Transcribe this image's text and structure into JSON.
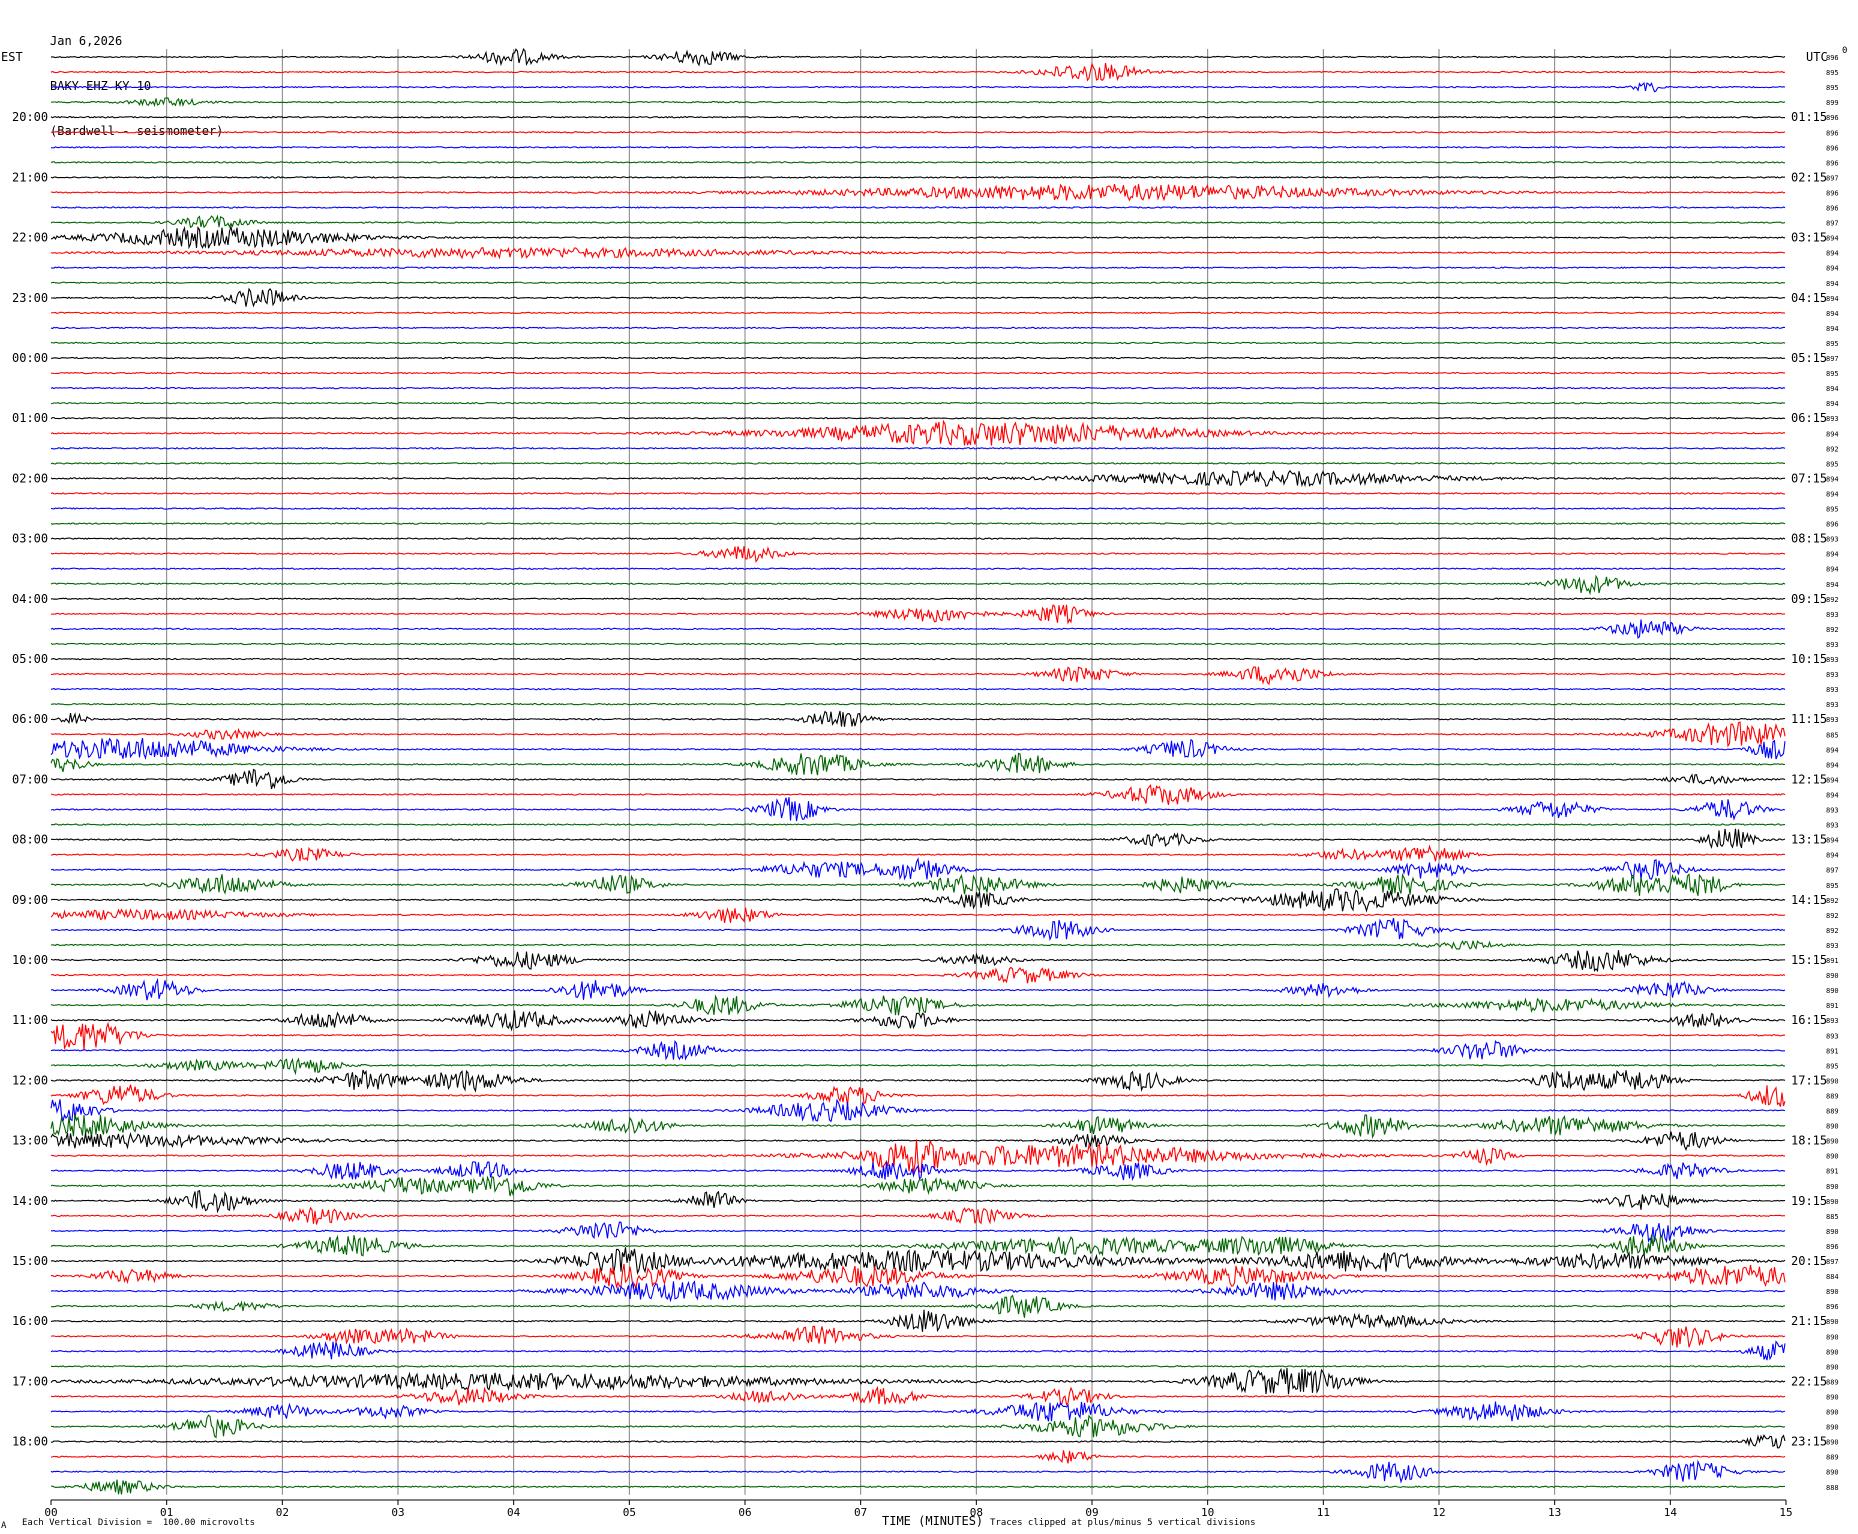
{
  "header": {
    "date": "Jan 6,2026",
    "station": "BAKY EHZ KY 10",
    "location": "(Bardwell - seismometer)"
  },
  "left_tz": "EST",
  "right_tz": "UTC",
  "right_header": "0",
  "footer": {
    "logo": "A",
    "scale": "Each Vertical Division =  100.00 microvolts",
    "xlabel": "TIME (MINUTES)",
    "clip": "Traces clipped at plus/minus 5 vertical divisions"
  },
  "colors": {
    "black": "#000000",
    "red": "#ff0000",
    "blue": "#0000ff",
    "green": "#006400",
    "grid": "#808080"
  },
  "chart_data": {
    "type": "line",
    "subtype": "helicorder",
    "x": {
      "label": "TIME (MINUTES)",
      "range": [
        0,
        15
      ],
      "ticks": [
        "00",
        "01",
        "02",
        "03",
        "04",
        "05",
        "06",
        "07",
        "08",
        "09",
        "10",
        "11",
        "12",
        "13",
        "14",
        "15"
      ]
    },
    "rows_per_hour": 4,
    "minutes_per_row": 15,
    "color_cycle": [
      "black",
      "red",
      "blue",
      "green"
    ],
    "left_hour_labels": [
      "20:00",
      "21:00",
      "22:00",
      "23:00",
      "00:00",
      "01:00",
      "02:00",
      "03:00",
      "04:00",
      "05:00",
      "06:00",
      "07:00",
      "08:00",
      "09:00",
      "10:00",
      "11:00",
      "12:00",
      "13:00",
      "14:00",
      "15:00",
      "16:00",
      "17:00",
      "18:00"
    ],
    "right_hour_labels": [
      "01:15",
      "02:15",
      "03:15",
      "04:15",
      "05:15",
      "06:15",
      "07:15",
      "08:15",
      "09:15",
      "10:15",
      "11:15",
      "12:15",
      "13:15",
      "14:15",
      "15:15",
      "16:15",
      "17:15",
      "18:15",
      "19:15",
      "20:15",
      "21:15",
      "22:15",
      "23:15"
    ],
    "first_labeled_row": 4,
    "row_values": [
      "896",
      "895",
      "895",
      "899",
      "896",
      "896",
      "896",
      "896",
      "897",
      "896",
      "896",
      "897",
      "894",
      "894",
      "894",
      "894",
      "894",
      "894",
      "894",
      "895",
      "897",
      "895",
      "894",
      "894",
      "893",
      "894",
      "892",
      "895",
      "894",
      "894",
      "895",
      "896",
      "893",
      "894",
      "894",
      "894",
      "892",
      "893",
      "892",
      "893",
      "893",
      "893",
      "893",
      "893",
      "893",
      "885",
      "894",
      "894",
      "894",
      "894",
      "893",
      "893",
      "894",
      "894",
      "897",
      "895",
      "892",
      "892",
      "892",
      "893",
      "891",
      "890",
      "890",
      "891",
      "893",
      "893",
      "891",
      "895",
      "890",
      "889",
      "889",
      "890",
      "890",
      "890",
      "891",
      "890",
      "890",
      "885",
      "890",
      "896",
      "897",
      "884",
      "890",
      "896",
      "890",
      "890",
      "890",
      "890",
      "889",
      "890",
      "890",
      "890",
      "890",
      "889",
      "890",
      "888"
    ],
    "events": [
      {
        "row": 0,
        "t": 4.0,
        "a": 1.0,
        "w": 0.3
      },
      {
        "row": 0,
        "t": 5.6,
        "a": 1.0,
        "w": 0.3
      },
      {
        "row": 1,
        "t": 9.0,
        "a": 1.2,
        "w": 0.4
      },
      {
        "row": 2,
        "t": 13.8,
        "a": 0.8,
        "w": 0.1
      },
      {
        "row": 3,
        "t": 1.0,
        "a": 0.5,
        "w": 0.3
      },
      {
        "row": 9,
        "t": 9.2,
        "a": 1.0,
        "w": 2.2
      },
      {
        "row": 11,
        "t": 1.4,
        "a": 0.8,
        "w": 0.3
      },
      {
        "row": 12,
        "t": 1.5,
        "a": 1.3,
        "w": 1.0
      },
      {
        "row": 13,
        "t": 4.0,
        "a": 0.6,
        "w": 2.2
      },
      {
        "row": 16,
        "t": 1.8,
        "a": 1.3,
        "w": 0.25
      },
      {
        "row": 25,
        "t": 8.1,
        "a": 1.5,
        "w": 1.6
      },
      {
        "row": 28,
        "t": 10.5,
        "a": 0.9,
        "w": 1.4
      },
      {
        "row": 33,
        "t": 6.0,
        "a": 1.0,
        "w": 0.3
      },
      {
        "row": 35,
        "t": 13.3,
        "a": 1.2,
        "w": 0.3
      },
      {
        "row": 37,
        "t": 7.6,
        "a": 1.0,
        "w": 0.4
      },
      {
        "row": 37,
        "t": 8.7,
        "a": 1.2,
        "w": 0.25
      },
      {
        "row": 38,
        "t": 13.8,
        "a": 1.2,
        "w": 0.3
      },
      {
        "row": 41,
        "t": 8.9,
        "a": 1.0,
        "w": 0.3
      },
      {
        "row": 41,
        "t": 10.6,
        "a": 1.3,
        "w": 0.35
      },
      {
        "row": 44,
        "t": 6.8,
        "a": 1.2,
        "w": 0.25
      },
      {
        "row": 44,
        "t": 0.2,
        "a": 0.8,
        "w": 0.1
      },
      {
        "row": 45,
        "t": 1.5,
        "a": 0.6,
        "w": 0.3
      },
      {
        "row": 45,
        "t": 14.6,
        "a": 1.5,
        "w": 0.6
      },
      {
        "row": 46,
        "t": 0.7,
        "a": 1.4,
        "w": 1.0
      },
      {
        "row": 46,
        "t": 9.8,
        "a": 1.2,
        "w": 0.3
      },
      {
        "row": 46,
        "t": 14.9,
        "a": 1.2,
        "w": 0.2
      },
      {
        "row": 47,
        "t": 6.6,
        "a": 1.5,
        "w": 0.4
      },
      {
        "row": 47,
        "t": 8.4,
        "a": 1.3,
        "w": 0.3
      },
      {
        "row": 47,
        "t": 0.1,
        "a": 0.9,
        "w": 0.2
      },
      {
        "row": 48,
        "t": 1.8,
        "a": 1.5,
        "w": 0.25
      },
      {
        "row": 48,
        "t": 14.3,
        "a": 0.6,
        "w": 0.3
      },
      {
        "row": 49,
        "t": 9.6,
        "a": 1.3,
        "w": 0.4
      },
      {
        "row": 50,
        "t": 6.4,
        "a": 1.5,
        "w": 0.25
      },
      {
        "row": 50,
        "t": 13.0,
        "a": 1.2,
        "w": 0.3
      },
      {
        "row": 50,
        "t": 14.5,
        "a": 1.3,
        "w": 0.25
      },
      {
        "row": 52,
        "t": 14.5,
        "a": 1.5,
        "w": 0.2
      },
      {
        "row": 52,
        "t": 9.6,
        "a": 0.8,
        "w": 0.3
      },
      {
        "row": 53,
        "t": 2.2,
        "a": 0.8,
        "w": 0.3
      },
      {
        "row": 53,
        "t": 11.9,
        "a": 1.2,
        "w": 0.3
      },
      {
        "row": 53,
        "t": 11.2,
        "a": 0.6,
        "w": 0.3
      },
      {
        "row": 54,
        "t": 6.7,
        "a": 1.0,
        "w": 0.5
      },
      {
        "row": 54,
        "t": 7.5,
        "a": 1.2,
        "w": 0.3
      },
      {
        "row": 54,
        "t": 11.9,
        "a": 1.1,
        "w": 0.3
      },
      {
        "row": 54,
        "t": 13.8,
        "a": 1.3,
        "w": 0.3
      },
      {
        "row": 55,
        "t": 1.5,
        "a": 1.3,
        "w": 0.4
      },
      {
        "row": 55,
        "t": 4.9,
        "a": 1.2,
        "w": 0.3
      },
      {
        "row": 55,
        "t": 8.0,
        "a": 1.3,
        "w": 0.4
      },
      {
        "row": 55,
        "t": 9.8,
        "a": 1.0,
        "w": 0.3
      },
      {
        "row": 55,
        "t": 11.7,
        "a": 1.2,
        "w": 0.4
      },
      {
        "row": 55,
        "t": 13.8,
        "a": 1.4,
        "w": 0.4
      },
      {
        "row": 55,
        "t": 14.3,
        "a": 1.0,
        "w": 0.2
      },
      {
        "row": 56,
        "t": 8.0,
        "a": 1.0,
        "w": 0.3
      },
      {
        "row": 56,
        "t": 11.2,
        "a": 1.4,
        "w": 0.7
      },
      {
        "row": 57,
        "t": 0.8,
        "a": 0.6,
        "w": 1.0
      },
      {
        "row": 57,
        "t": 5.9,
        "a": 1.0,
        "w": 0.3
      },
      {
        "row": 58,
        "t": 8.7,
        "a": 1.3,
        "w": 0.3
      },
      {
        "row": 58,
        "t": 11.6,
        "a": 1.4,
        "w": 0.3
      },
      {
        "row": 59,
        "t": 12.2,
        "a": 0.6,
        "w": 0.3
      },
      {
        "row": 60,
        "t": 4.1,
        "a": 1.1,
        "w": 0.4
      },
      {
        "row": 60,
        "t": 13.4,
        "a": 1.4,
        "w": 0.4
      },
      {
        "row": 60,
        "t": 8.0,
        "a": 0.7,
        "w": 0.3
      },
      {
        "row": 61,
        "t": 8.4,
        "a": 1.0,
        "w": 0.4
      },
      {
        "row": 62,
        "t": 0.9,
        "a": 1.3,
        "w": 0.3
      },
      {
        "row": 62,
        "t": 4.7,
        "a": 1.3,
        "w": 0.3
      },
      {
        "row": 62,
        "t": 14.0,
        "a": 1.1,
        "w": 0.3
      },
      {
        "row": 62,
        "t": 11.0,
        "a": 0.8,
        "w": 0.3
      },
      {
        "row": 63,
        "t": 5.8,
        "a": 1.3,
        "w": 0.3
      },
      {
        "row": 63,
        "t": 7.3,
        "a": 1.3,
        "w": 0.4
      },
      {
        "row": 63,
        "t": 13.0,
        "a": 0.8,
        "w": 0.8
      },
      {
        "row": 64,
        "t": 2.4,
        "a": 1.2,
        "w": 0.3
      },
      {
        "row": 64,
        "t": 4.0,
        "a": 1.2,
        "w": 0.4
      },
      {
        "row": 64,
        "t": 5.2,
        "a": 1.2,
        "w": 0.3
      },
      {
        "row": 64,
        "t": 7.4,
        "a": 1.1,
        "w": 0.3
      },
      {
        "row": 64,
        "t": 14.3,
        "a": 0.9,
        "w": 0.3
      },
      {
        "row": 65,
        "t": 0.2,
        "a": 1.5,
        "w": 0.3
      },
      {
        "row": 65,
        "t": 0.5,
        "a": 0.9,
        "w": 0.3
      },
      {
        "row": 66,
        "t": 5.4,
        "a": 1.1,
        "w": 0.3
      },
      {
        "row": 66,
        "t": 12.4,
        "a": 1.3,
        "w": 0.3
      },
      {
        "row": 67,
        "t": 2.2,
        "a": 1.0,
        "w": 0.3
      },
      {
        "row": 67,
        "t": 1.3,
        "a": 0.6,
        "w": 0.4
      },
      {
        "row": 68,
        "t": 2.7,
        "a": 1.3,
        "w": 0.3
      },
      {
        "row": 68,
        "t": 3.6,
        "a": 1.3,
        "w": 0.4
      },
      {
        "row": 68,
        "t": 9.4,
        "a": 1.2,
        "w": 0.3
      },
      {
        "row": 68,
        "t": 13.1,
        "a": 1.3,
        "w": 0.3
      },
      {
        "row": 68,
        "t": 13.7,
        "a": 1.3,
        "w": 0.3
      },
      {
        "row": 69,
        "t": 0.6,
        "a": 1.4,
        "w": 0.3
      },
      {
        "row": 69,
        "t": 6.9,
        "a": 1.2,
        "w": 0.3
      },
      {
        "row": 69,
        "t": 14.9,
        "a": 1.5,
        "w": 0.2
      },
      {
        "row": 70,
        "t": 0.1,
        "a": 1.5,
        "w": 0.3
      },
      {
        "row": 70,
        "t": 6.7,
        "a": 1.3,
        "w": 0.5
      },
      {
        "row": 71,
        "t": 0.3,
        "a": 1.4,
        "w": 0.5
      },
      {
        "row": 71,
        "t": 5.0,
        "a": 1.2,
        "w": 0.3
      },
      {
        "row": 71,
        "t": 9.1,
        "a": 1.1,
        "w": 0.3
      },
      {
        "row": 71,
        "t": 11.4,
        "a": 1.4,
        "w": 0.3
      },
      {
        "row": 71,
        "t": 13.1,
        "a": 1.2,
        "w": 0.6
      },
      {
        "row": 72,
        "t": 0.3,
        "a": 0.9,
        "w": 1.5
      },
      {
        "row": 72,
        "t": 14.1,
        "a": 1.2,
        "w": 0.3
      },
      {
        "row": 72,
        "t": 9.0,
        "a": 0.8,
        "w": 0.3
      },
      {
        "row": 73,
        "t": 7.4,
        "a": 1.5,
        "w": 0.3
      },
      {
        "row": 73,
        "t": 8.7,
        "a": 1.4,
        "w": 1.6
      },
      {
        "row": 73,
        "t": 12.4,
        "a": 1.0,
        "w": 0.2
      },
      {
        "row": 74,
        "t": 2.6,
        "a": 1.2,
        "w": 0.3
      },
      {
        "row": 74,
        "t": 3.7,
        "a": 1.1,
        "w": 0.3
      },
      {
        "row": 74,
        "t": 7.3,
        "a": 1.5,
        "w": 0.3
      },
      {
        "row": 74,
        "t": 9.3,
        "a": 1.1,
        "w": 0.3
      },
      {
        "row": 74,
        "t": 14.1,
        "a": 1.0,
        "w": 0.3
      },
      {
        "row": 75,
        "t": 3.1,
        "a": 1.1,
        "w": 0.4
      },
      {
        "row": 75,
        "t": 3.9,
        "a": 1.4,
        "w": 0.3
      },
      {
        "row": 75,
        "t": 7.6,
        "a": 1.1,
        "w": 0.4
      },
      {
        "row": 76,
        "t": 1.4,
        "a": 1.5,
        "w": 0.3
      },
      {
        "row": 76,
        "t": 5.7,
        "a": 1.4,
        "w": 0.2
      },
      {
        "row": 76,
        "t": 13.8,
        "a": 1.1,
        "w": 0.3
      },
      {
        "row": 77,
        "t": 2.3,
        "a": 1.0,
        "w": 0.3
      },
      {
        "row": 77,
        "t": 8.0,
        "a": 1.0,
        "w": 0.3
      },
      {
        "row": 78,
        "t": 4.8,
        "a": 1.3,
        "w": 0.3
      },
      {
        "row": 78,
        "t": 13.9,
        "a": 1.4,
        "w": 0.3
      },
      {
        "row": 79,
        "t": 2.6,
        "a": 1.3,
        "w": 0.4
      },
      {
        "row": 79,
        "t": 8.9,
        "a": 1.1,
        "w": 1.0
      },
      {
        "row": 79,
        "t": 10.5,
        "a": 1.2,
        "w": 0.5
      },
      {
        "row": 79,
        "t": 13.8,
        "a": 1.4,
        "w": 0.3
      },
      {
        "row": 80,
        "t": 4.9,
        "a": 1.5,
        "w": 0.4
      },
      {
        "row": 80,
        "t": 7.5,
        "a": 1.3,
        "w": 1.8
      },
      {
        "row": 80,
        "t": 11.3,
        "a": 1.4,
        "w": 0.7
      },
      {
        "row": 80,
        "t": 13.5,
        "a": 1.0,
        "w": 0.8
      },
      {
        "row": 81,
        "t": 5.0,
        "a": 1.5,
        "w": 0.4
      },
      {
        "row": 81,
        "t": 7.0,
        "a": 1.3,
        "w": 0.6
      },
      {
        "row": 81,
        "t": 10.3,
        "a": 1.2,
        "w": 0.6
      },
      {
        "row": 81,
        "t": 14.6,
        "a": 1.4,
        "w": 0.6
      },
      {
        "row": 81,
        "t": 0.7,
        "a": 0.9,
        "w": 0.3
      },
      {
        "row": 82,
        "t": 5.4,
        "a": 1.2,
        "w": 0.8
      },
      {
        "row": 82,
        "t": 7.5,
        "a": 1.1,
        "w": 0.5
      },
      {
        "row": 82,
        "t": 10.6,
        "a": 1.1,
        "w": 0.5
      },
      {
        "row": 83,
        "t": 8.4,
        "a": 1.4,
        "w": 0.3
      },
      {
        "row": 83,
        "t": 1.6,
        "a": 0.6,
        "w": 0.3
      },
      {
        "row": 84,
        "t": 7.6,
        "a": 1.5,
        "w": 0.3
      },
      {
        "row": 84,
        "t": 11.4,
        "a": 0.8,
        "w": 0.6
      },
      {
        "row": 85,
        "t": 6.6,
        "a": 1.2,
        "w": 0.4
      },
      {
        "row": 85,
        "t": 14.1,
        "a": 1.4,
        "w": 0.3
      },
      {
        "row": 85,
        "t": 3.1,
        "a": 0.8,
        "w": 0.3
      },
      {
        "row": 85,
        "t": 2.6,
        "a": 0.8,
        "w": 0.3
      },
      {
        "row": 86,
        "t": 2.4,
        "a": 1.2,
        "w": 0.3
      },
      {
        "row": 86,
        "t": 14.9,
        "a": 1.2,
        "w": 0.2
      },
      {
        "row": 88,
        "t": 4.0,
        "a": 1.0,
        "w": 2.5
      },
      {
        "row": 88,
        "t": 10.5,
        "a": 1.5,
        "w": 0.5
      },
      {
        "row": 88,
        "t": 11.0,
        "a": 0.9,
        "w": 0.3
      },
      {
        "row": 89,
        "t": 3.6,
        "a": 1.1,
        "w": 0.4
      },
      {
        "row": 89,
        "t": 7.2,
        "a": 1.1,
        "w": 0.3
      },
      {
        "row": 89,
        "t": 8.8,
        "a": 1.0,
        "w": 0.3
      },
      {
        "row": 89,
        "t": 6.2,
        "a": 0.8,
        "w": 0.3
      },
      {
        "row": 90,
        "t": 8.7,
        "a": 1.4,
        "w": 0.5
      },
      {
        "row": 90,
        "t": 12.5,
        "a": 1.3,
        "w": 0.4
      },
      {
        "row": 90,
        "t": 2.0,
        "a": 0.9,
        "w": 0.3
      },
      {
        "row": 90,
        "t": 2.9,
        "a": 0.8,
        "w": 0.3
      },
      {
        "row": 91,
        "t": 1.4,
        "a": 1.4,
        "w": 0.3
      },
      {
        "row": 91,
        "t": 9.0,
        "a": 1.3,
        "w": 0.5
      },
      {
        "row": 92,
        "t": 14.9,
        "a": 1.0,
        "w": 0.2
      },
      {
        "row": 93,
        "t": 8.8,
        "a": 0.8,
        "w": 0.2
      },
      {
        "row": 94,
        "t": 11.6,
        "a": 1.3,
        "w": 0.3
      },
      {
        "row": 94,
        "t": 14.2,
        "a": 1.3,
        "w": 0.3
      },
      {
        "row": 95,
        "t": 0.6,
        "a": 0.9,
        "w": 0.3
      }
    ]
  }
}
